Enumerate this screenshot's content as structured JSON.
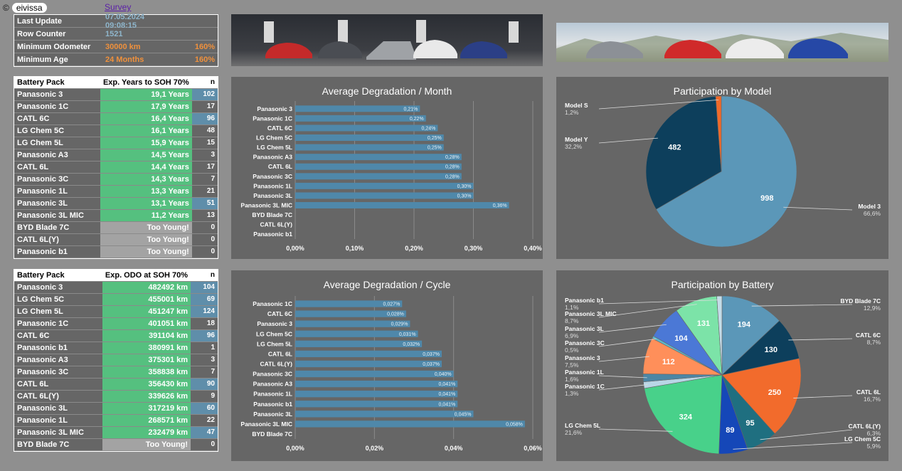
{
  "header": {
    "copyright": "©",
    "brand": "eivissa",
    "survey_link": "Survey"
  },
  "info": [
    {
      "key": "Last Update",
      "value": "07.05.2024 09:08:15",
      "pct": "",
      "color": "blue"
    },
    {
      "key": "Row Counter",
      "value": "1521",
      "pct": "",
      "color": "blue"
    },
    {
      "key": "Minimum Odometer",
      "value": "30000 km",
      "pct": "160%",
      "color": "orange"
    },
    {
      "key": "Minimum Age",
      "value": "24 Months",
      "pct": "160%",
      "color": "orange"
    }
  ],
  "years_table": {
    "headers": [
      "Battery Pack",
      "Exp. Years to SOH 70%",
      "n"
    ],
    "rows": [
      {
        "name": "Panasonic 3",
        "value": "19,1 Years",
        "n": "102",
        "hl": true
      },
      {
        "name": "Panasonic 1C",
        "value": "17,9 Years",
        "n": "17",
        "hl": false
      },
      {
        "name": "CATL 6C",
        "value": "16,4 Years",
        "n": "96",
        "hl": true
      },
      {
        "name": "LG Chem 5C",
        "value": "16,1 Years",
        "n": "48",
        "hl": false
      },
      {
        "name": "LG Chem 5L",
        "value": "15,9 Years",
        "n": "15",
        "hl": false
      },
      {
        "name": "Panasonic A3",
        "value": "14,5 Years",
        "n": "3",
        "hl": false
      },
      {
        "name": "CATL 6L",
        "value": "14,4 Years",
        "n": "17",
        "hl": false
      },
      {
        "name": "Panasonic 3C",
        "value": "14,3 Years",
        "n": "7",
        "hl": false
      },
      {
        "name": "Panasonic 1L",
        "value": "13,3 Years",
        "n": "21",
        "hl": false
      },
      {
        "name": "Panasonic 3L",
        "value": "13,1 Years",
        "n": "51",
        "hl": true
      },
      {
        "name": "Panasonic 3L MIC",
        "value": "11,2 Years",
        "n": "13",
        "hl": false
      },
      {
        "name": "BYD Blade 7C",
        "value": "Too Young!",
        "n": "0",
        "hl": false
      },
      {
        "name": "CATL 6L(Y)",
        "value": "Too Young!",
        "n": "0",
        "hl": false
      },
      {
        "name": "Panasonic b1",
        "value": "Too Young!",
        "n": "0",
        "hl": false
      }
    ]
  },
  "odo_table": {
    "headers": [
      "Battery Pack",
      "Exp. ODO at SOH 70%",
      "n"
    ],
    "rows": [
      {
        "name": "Panasonic 3",
        "value": "482492 km",
        "n": "104",
        "hl": true
      },
      {
        "name": "LG Chem 5C",
        "value": "455001 km",
        "n": "69",
        "hl": true
      },
      {
        "name": "LG Chem 5L",
        "value": "451247 km",
        "n": "124",
        "hl": true
      },
      {
        "name": "Panasonic 1C",
        "value": "401051 km",
        "n": "18",
        "hl": false
      },
      {
        "name": "CATL 6C",
        "value": "391104 km",
        "n": "96",
        "hl": true
      },
      {
        "name": "Panasonic b1",
        "value": "380991 km",
        "n": "1",
        "hl": false
      },
      {
        "name": "Panasonic A3",
        "value": "375301 km",
        "n": "3",
        "hl": false
      },
      {
        "name": "Panasonic 3C",
        "value": "358838 km",
        "n": "7",
        "hl": false
      },
      {
        "name": "CATL 6L",
        "value": "356430 km",
        "n": "90",
        "hl": true
      },
      {
        "name": "CATL 6L(Y)",
        "value": "339626 km",
        "n": "9",
        "hl": false
      },
      {
        "name": "Panasonic 3L",
        "value": "317219 km",
        "n": "60",
        "hl": true
      },
      {
        "name": "Panasonic 1L",
        "value": "268571 km",
        "n": "22",
        "hl": false
      },
      {
        "name": "Panasonic 3L MIC",
        "value": "232479 km",
        "n": "47",
        "hl": true
      },
      {
        "name": "BYD Blade 7C",
        "value": "Too Young!",
        "n": "0",
        "hl": false
      }
    ]
  },
  "colors": {
    "bar": "#4f88aa",
    "panel": "#666666",
    "green": "#55c07f",
    "orange": "#f0913c"
  },
  "chart_data": [
    {
      "type": "bar",
      "title": "Average Degradation / Month",
      "categories": [
        "Panasonic 3",
        "Panasonic 1C",
        "CATL 6C",
        "LG Chem 5C",
        "LG Chem 5L",
        "Panasonic A3",
        "CATL 6L",
        "Panasonic 3C",
        "Panasonic 1L",
        "Panasonic 3L",
        "Panasonic 3L MIC",
        "BYD Blade 7C",
        "CATL 6L(Y)",
        "Panasonic b1"
      ],
      "values": [
        0.21,
        0.22,
        0.24,
        0.25,
        0.25,
        0.28,
        0.28,
        0.28,
        0.3,
        0.3,
        0.36,
        null,
        null,
        null
      ],
      "labels": [
        "0,21%",
        "0,22%",
        "0,24%",
        "0,25%",
        "0,25%",
        "0,28%",
        "0,28%",
        "0,28%",
        "0,30%",
        "0,30%",
        "0,36%",
        "",
        "",
        ""
      ],
      "xlim": [
        0,
        0.4
      ],
      "ticks": [
        "0,00%",
        "0,10%",
        "0,20%",
        "0,30%",
        "0,40%"
      ]
    },
    {
      "type": "pie",
      "title": "Participation by Model",
      "slices": [
        {
          "name": "Model 3",
          "value": 998,
          "pct": "66,6%",
          "color": "#5b97b8"
        },
        {
          "name": "Model Y",
          "value": 482,
          "pct": "32,2%",
          "color": "#0d3f5c"
        },
        {
          "name": "Model S",
          "value": 18,
          "pct": "1,2%",
          "color": "#f06a2a"
        }
      ]
    },
    {
      "type": "bar",
      "title": "Average Degradation / Cycle",
      "categories": [
        "Panasonic 1C",
        "CATL 6C",
        "Panasonic 3",
        "LG Chem 5C",
        "LG Chem 5L",
        "CATL 6L",
        "CATL 6L(Y)",
        "Panasonic 3C",
        "Panasonic A3",
        "Panasonic 1L",
        "Panasonic b1",
        "Panasonic 3L",
        "Panasonic 3L MIC",
        "BYD Blade 7C"
      ],
      "values": [
        0.027,
        0.028,
        0.029,
        0.031,
        0.032,
        0.037,
        0.037,
        0.04,
        0.041,
        0.041,
        0.041,
        0.045,
        0.058,
        null
      ],
      "labels": [
        "0,027%",
        "0,028%",
        "0,029%",
        "0,031%",
        "0,032%",
        "0,037%",
        "0,037%",
        "0,040%",
        "0,041%",
        "0,041%",
        "0,041%",
        "0,045%",
        "0,058%",
        ""
      ],
      "xlim": [
        0,
        0.06
      ],
      "ticks": [
        "0,00%",
        "0,02%",
        "0,04%",
        "0,06%"
      ]
    },
    {
      "type": "pie",
      "title": "Participation by Battery",
      "slices": [
        {
          "name": "BYD Blade 7C",
          "value": 194,
          "pct": "12,9%",
          "color": "#5b97b8"
        },
        {
          "name": "CATL 6C",
          "value": 130,
          "pct": "8,7%",
          "color": "#0d3f5c"
        },
        {
          "name": "CATL 6L",
          "value": 250,
          "pct": "16,7%",
          "color": "#f26b2c"
        },
        {
          "name": "CATL 6L(Y)",
          "value": 95,
          "pct": "6,3%",
          "color": "#1f6f80"
        },
        {
          "name": "LG Chem 5C",
          "value": 89,
          "pct": "5,9%",
          "color": "#1547b8"
        },
        {
          "name": "LG Chem 5L",
          "value": 324,
          "pct": "21,6%",
          "color": "#48d18a"
        },
        {
          "name": "Panasonic 1C",
          "value": 20,
          "pct": "1,3%",
          "color": "#b9d6e6"
        },
        {
          "name": "Panasonic 1L",
          "value": 24,
          "pct": "1,6%",
          "color": "#4c86a5"
        },
        {
          "name": "Panasonic 3",
          "value": 112,
          "pct": "7,5%",
          "color": "#ff8f5a"
        },
        {
          "name": "Panasonic 3C",
          "value": 8,
          "pct": "0,5%",
          "color": "#5fb7c9"
        },
        {
          "name": "Panasonic 3L",
          "value": 104,
          "pct": "6,9%",
          "color": "#4b78d6"
        },
        {
          "name": "Panasonic 3L MIC",
          "value": 131,
          "pct": "8,7%",
          "color": "#7ce3a8"
        },
        {
          "name": "Panasonic b1",
          "value": 16,
          "pct": "1,1%",
          "color": "#c4dce8"
        }
      ]
    }
  ]
}
